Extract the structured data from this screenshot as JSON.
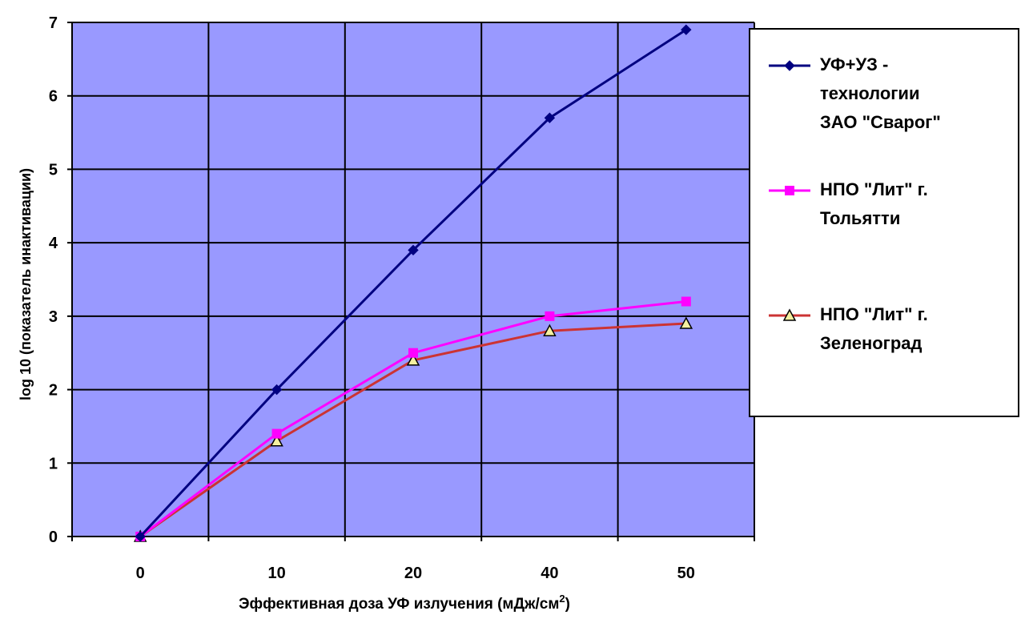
{
  "chart_data": {
    "type": "line",
    "categories": [
      "0",
      "10",
      "20",
      "40",
      "50"
    ],
    "xlabel": "Эффективная доза УФ излучения (мДж/см",
    "xlabel_sup": "2",
    "xlabel_end": ")",
    "ylabel": "log 10 (показатель инактивации)",
    "ylim": [
      0,
      7
    ],
    "yticks": [
      "0",
      "1",
      "2",
      "3",
      "4",
      "5",
      "6",
      "7"
    ],
    "grid": true,
    "legend_position": "right",
    "plot_background": "#9999ff",
    "series": [
      {
        "name": "УФ+УЗ - технологии ЗАО \"Сварог\"",
        "legend_lines": [
          "УФ+УЗ -",
          "технологии",
          "ЗАО \"Сварог\""
        ],
        "values": [
          0,
          2.0,
          3.9,
          5.7,
          6.9
        ],
        "color": "#000080",
        "marker": "diamond"
      },
      {
        "name": "НПО \"Лит\" г. Тольятти",
        "legend_lines": [
          "НПО \"Лит\" г.",
          "Тольятти"
        ],
        "values": [
          0,
          1.4,
          2.5,
          3.0,
          3.2
        ],
        "color": "#ff00ff",
        "marker": "square"
      },
      {
        "name": "НПО \"Лит\" г. Зеленоград",
        "legend_lines": [
          "НПО \"Лит\" г.",
          "Зеленоград"
        ],
        "values": [
          0,
          1.3,
          2.4,
          2.8,
          2.9
        ],
        "color": "#cc3333",
        "marker": "triangle"
      }
    ]
  }
}
